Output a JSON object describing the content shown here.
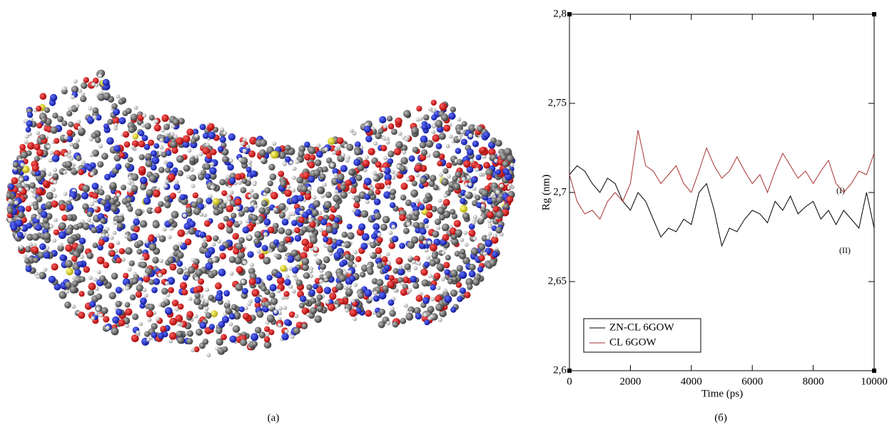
{
  "chart_data": {
    "type": "line",
    "xlabel": "Time (ps)",
    "ylabel": "Rg (nm)",
    "captions": [
      "(a)",
      "(б)"
    ],
    "annotations": [
      "(I)",
      "(II)"
    ],
    "xlim": [
      0,
      10000
    ],
    "xticks": [
      0,
      2000,
      4000,
      6000,
      8000,
      10000
    ],
    "ylim": [
      2.6,
      2.8
    ],
    "yticks": [
      {
        "value": 2.6,
        "label": "2,6"
      },
      {
        "value": 2.65,
        "label": "2,65"
      },
      {
        "value": 2.7,
        "label": "2,7"
      },
      {
        "value": 2.75,
        "label": "2,75"
      },
      {
        "value": 2.8,
        "label": "2,8"
      }
    ],
    "legend": "lower left",
    "x": [
      0,
      250,
      500,
      750,
      1000,
      1250,
      1500,
      1750,
      2000,
      2250,
      2500,
      2750,
      3000,
      3250,
      3500,
      3750,
      4000,
      4250,
      4500,
      4750,
      5000,
      5250,
      5500,
      5750,
      6000,
      6250,
      6500,
      6750,
      7000,
      7250,
      7500,
      7750,
      8000,
      8250,
      8500,
      8750,
      9000,
      9250,
      9500,
      9750,
      10000
    ],
    "series": [
      {
        "name": "ZN-CL 6GOW",
        "color": "#000000",
        "values": [
          2.71,
          2.715,
          2.712,
          2.705,
          2.7,
          2.708,
          2.705,
          2.695,
          2.69,
          2.7,
          2.695,
          2.685,
          2.675,
          2.68,
          2.678,
          2.685,
          2.682,
          2.7,
          2.705,
          2.69,
          2.67,
          2.68,
          2.678,
          2.685,
          2.69,
          2.688,
          2.683,
          2.695,
          2.69,
          2.698,
          2.688,
          2.692,
          2.695,
          2.685,
          2.69,
          2.682,
          2.69,
          2.685,
          2.68,
          2.7,
          2.68
        ]
      },
      {
        "name": "CL 6GOW",
        "color": "#a83232",
        "values": [
          2.71,
          2.695,
          2.688,
          2.69,
          2.685,
          2.695,
          2.7,
          2.695,
          2.705,
          2.735,
          2.715,
          2.712,
          2.705,
          2.71,
          2.715,
          2.705,
          2.7,
          2.712,
          2.725,
          2.715,
          2.708,
          2.712,
          2.72,
          2.712,
          2.705,
          2.71,
          2.7,
          2.712,
          2.722,
          2.715,
          2.708,
          2.712,
          2.705,
          2.712,
          2.718,
          2.705,
          2.7,
          2.705,
          2.712,
          2.71,
          2.722
        ]
      }
    ]
  }
}
